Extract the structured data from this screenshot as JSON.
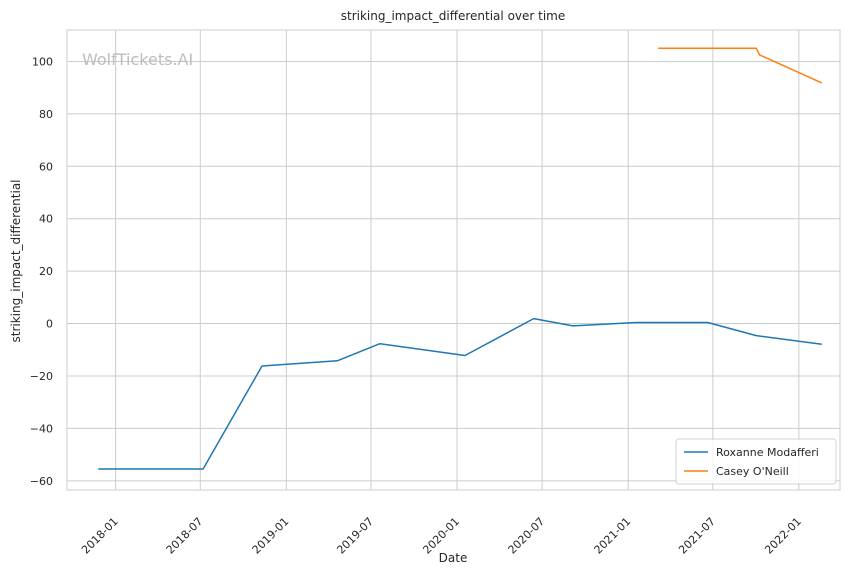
{
  "chart_data": {
    "type": "line",
    "title": "striking_impact_differential over time",
    "xlabel": "Date",
    "ylabel": "striking_impact_differential",
    "watermark": "WolfTickets.AI",
    "x_ticks": [
      "2018-01",
      "2018-07",
      "2019-01",
      "2019-07",
      "2020-01",
      "2020-07",
      "2021-01",
      "2021-07",
      "2022-01"
    ],
    "y_ticks": [
      -60,
      -40,
      -20,
      0,
      20,
      40,
      60,
      80,
      100
    ],
    "y_tick_labels": [
      "−60",
      "−40",
      "−20",
      "0",
      "20",
      "40",
      "60",
      "80",
      "100"
    ],
    "xlim": [
      "2017-09-19",
      "2022-03-30"
    ],
    "ylim": [
      -63.5,
      112
    ],
    "grid": true,
    "legend_position": "lower-right",
    "series": [
      {
        "name": "Roxanne Modafferi",
        "color": "#1f77b4",
        "points": [
          [
            "2017-11-25",
            -55.5
          ],
          [
            "2018-07-07",
            -55.5
          ],
          [
            "2018-11-10",
            -16.2
          ],
          [
            "2019-04-20",
            -14.2
          ],
          [
            "2019-07-20",
            -7.7
          ],
          [
            "2020-01-18",
            -12.2
          ],
          [
            "2020-06-13",
            1.9
          ],
          [
            "2020-09-05",
            -0.9
          ],
          [
            "2021-01-20",
            0.4
          ],
          [
            "2021-06-20",
            0.4
          ],
          [
            "2021-10-02",
            -4.6
          ],
          [
            "2022-02-19",
            -7.9
          ]
        ]
      },
      {
        "name": "Casey O'Neill",
        "color": "#ff7f0e",
        "points": [
          [
            "2021-03-06",
            105.0
          ],
          [
            "2021-10-02",
            105.0
          ],
          [
            "2021-10-09",
            102.5
          ],
          [
            "2022-02-19",
            91.8
          ]
        ]
      }
    ]
  }
}
